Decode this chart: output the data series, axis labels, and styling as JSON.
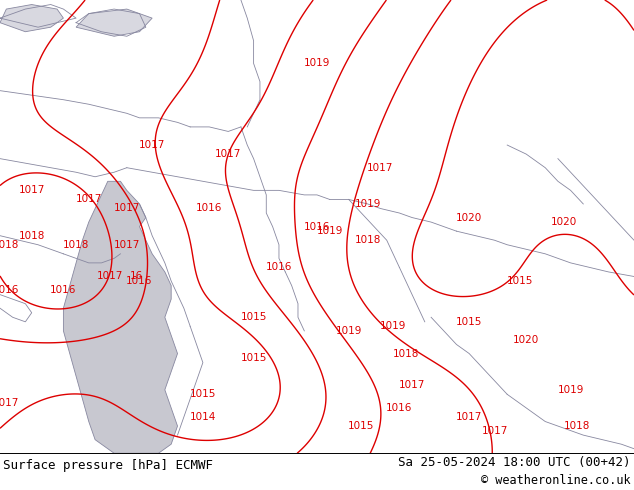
{
  "background_color": "#c8f598",
  "fig_width": 6.34,
  "fig_height": 4.9,
  "dpi": 100,
  "bottom_bar_bg": "#ffffff",
  "bottom_text_left": "Surface pressure [hPa] ECMWF",
  "bottom_text_right": "Sa 25-05-2024 18:00 UTC (00+42)",
  "bottom_text_copyright": "© weatheronline.co.uk",
  "isobar_color": "#dd0000",
  "coast_color": "#8888a0",
  "sea_color": "#c8c8d0",
  "text_color": "#dd0000",
  "font_size_bottom": 9.0,
  "font_size_label": 7.5,
  "contour_linewidth": 1.0,
  "coast_linewidth": 0.6
}
